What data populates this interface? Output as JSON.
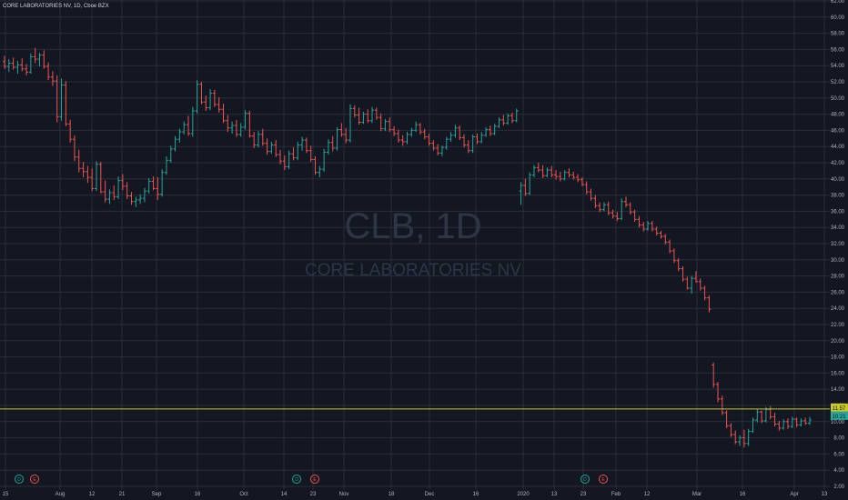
{
  "header": {
    "title": "CORE LABORATORIES NV, 1D, Cboe BZX"
  },
  "watermark": {
    "symbol": "CLB, 1D",
    "name": "CORE LABORATORIES NV"
  },
  "colors": {
    "background": "#131722",
    "grid": "#2a2e39",
    "up": "#26a69a",
    "down": "#ef5350",
    "hline": "#c9c92a",
    "axis_text": "#b2b5be",
    "price_label_bg": "#c9c92a",
    "dividend": "#26a69a",
    "earnings": "#ef5350"
  },
  "price_axis": {
    "ticks": [
      "62.00",
      "60.00",
      "58.00",
      "56.00",
      "54.00",
      "52.00",
      "50.00",
      "48.00",
      "46.00",
      "44.00",
      "42.00",
      "40.00",
      "38.00",
      "36.00",
      "34.00",
      "32.00",
      "30.00",
      "28.00",
      "26.00",
      "24.00",
      "22.00",
      "20.00",
      "18.00",
      "16.00",
      "14.00",
      "12.00",
      "10.00",
      "8.00",
      "6.00",
      "4.00",
      "2.00"
    ],
    "price_labels": [
      "11.57",
      "10.21"
    ]
  },
  "time_axis": {
    "labels": [
      "15",
      "Aug",
      "12",
      "21",
      "Sep",
      "16",
      "Oct",
      "14",
      "23",
      "Nov",
      "18",
      "Dec",
      "16",
      "2020",
      "13",
      "23",
      "Feb",
      "12",
      "Mar",
      "16",
      "Apr",
      "13"
    ]
  },
  "events": [
    {
      "type": "dividend",
      "label": "D"
    },
    {
      "type": "earnings",
      "label": "E"
    },
    {
      "type": "dividend",
      "label": "D"
    },
    {
      "type": "earnings",
      "label": "E"
    },
    {
      "type": "dividend",
      "label": "D"
    },
    {
      "type": "earnings",
      "label": "E"
    }
  ],
  "chart_data": {
    "type": "ohlc",
    "title": "CORE LABORATORIES NV, 1D, Cboe BZX",
    "symbol": "CLB",
    "interval": "1D",
    "ylim": [
      2,
      62
    ],
    "horizontal_line": 11.57,
    "last_price": 10.21,
    "dates": [
      "2019-07-15",
      "2019-07-16",
      "2019-07-17",
      "2019-07-18",
      "2019-07-19",
      "2019-07-22",
      "2019-07-23",
      "2019-07-24",
      "2019-07-25",
      "2019-07-26",
      "2019-07-29",
      "2019-07-30",
      "2019-07-31",
      "2019-08-01",
      "2019-08-02",
      "2019-08-05",
      "2019-08-06",
      "2019-08-07",
      "2019-08-08",
      "2019-08-09",
      "2019-08-12",
      "2019-08-13",
      "2019-08-14",
      "2019-08-15",
      "2019-08-16",
      "2019-08-19",
      "2019-08-20",
      "2019-08-21",
      "2019-08-22",
      "2019-08-23",
      "2019-08-26",
      "2019-08-27",
      "2019-08-28",
      "2019-08-29",
      "2019-08-30",
      "2019-09-03",
      "2019-09-04",
      "2019-09-05",
      "2019-09-06",
      "2019-09-09",
      "2019-09-10",
      "2019-09-11",
      "2019-09-12",
      "2019-09-13",
      "2019-09-16",
      "2019-09-17",
      "2019-09-18",
      "2019-09-19",
      "2019-09-20",
      "2019-09-23",
      "2019-09-24",
      "2019-09-25",
      "2019-09-26",
      "2019-09-27",
      "2019-09-30",
      "2019-10-01",
      "2019-10-02",
      "2019-10-03",
      "2019-10-04",
      "2019-10-07",
      "2019-10-08",
      "2019-10-09",
      "2019-10-10",
      "2019-10-11",
      "2019-10-14",
      "2019-10-15",
      "2019-10-16",
      "2019-10-17",
      "2019-10-18",
      "2019-10-21",
      "2019-10-22",
      "2019-10-23",
      "2019-10-24",
      "2019-10-25",
      "2019-10-28",
      "2019-10-29",
      "2019-10-30",
      "2019-10-31",
      "2019-11-01",
      "2019-11-04",
      "2019-11-05",
      "2019-11-06",
      "2019-11-07",
      "2019-11-08",
      "2019-11-11",
      "2019-11-12",
      "2019-11-13",
      "2019-11-14",
      "2019-11-15",
      "2019-11-18",
      "2019-11-19",
      "2019-11-20",
      "2019-11-21",
      "2019-11-22",
      "2019-11-25",
      "2019-11-26",
      "2019-11-27",
      "2019-11-29",
      "2019-12-02",
      "2019-12-03",
      "2019-12-04",
      "2019-12-05",
      "2019-12-06",
      "2019-12-09",
      "2019-12-10",
      "2019-12-11",
      "2019-12-12",
      "2019-12-13",
      "2019-12-16",
      "2019-12-17",
      "2019-12-18",
      "2019-12-19",
      "2019-12-20",
      "2019-12-23",
      "2019-12-24",
      "2019-12-26",
      "2019-12-27",
      "2019-12-30",
      "2019-12-31",
      "2020-01-02",
      "2020-01-03",
      "2020-01-06",
      "2020-01-07",
      "2020-01-08",
      "2020-01-09",
      "2020-01-10",
      "2020-01-13",
      "2020-01-14",
      "2020-01-15",
      "2020-01-16",
      "2020-01-17",
      "2020-01-21",
      "2020-01-22",
      "2020-01-23",
      "2020-01-24",
      "2020-01-27",
      "2020-01-28",
      "2020-01-29",
      "2020-01-30",
      "2020-01-31",
      "2020-02-03",
      "2020-02-04",
      "2020-02-05",
      "2020-02-06",
      "2020-02-07",
      "2020-02-10",
      "2020-02-11",
      "2020-02-12",
      "2020-02-13",
      "2020-02-14",
      "2020-02-18",
      "2020-02-19",
      "2020-02-20",
      "2020-02-21",
      "2020-02-24",
      "2020-02-25",
      "2020-02-26",
      "2020-02-27",
      "2020-02-28",
      "2020-03-02",
      "2020-03-03",
      "2020-03-04",
      "2020-03-05",
      "2020-03-06",
      "2020-03-09",
      "2020-03-10",
      "2020-03-11",
      "2020-03-12",
      "2020-03-13",
      "2020-03-16",
      "2020-03-17",
      "2020-03-18",
      "2020-03-19",
      "2020-03-20",
      "2020-03-23",
      "2020-03-24",
      "2020-03-25",
      "2020-03-26",
      "2020-03-27",
      "2020-03-30",
      "2020-03-31",
      "2020-04-01",
      "2020-04-02",
      "2020-04-03",
      "2020-04-06",
      "2020-04-07",
      "2020-04-08",
      "2020-04-09"
    ],
    "ohlc": [
      [
        54.5,
        55.2,
        53.6,
        53.9
      ],
      [
        53.9,
        54.8,
        53.2,
        54.3
      ],
      [
        54.3,
        55,
        53.5,
        53.8
      ],
      [
        53.8,
        54.6,
        53,
        54.1
      ],
      [
        54.1,
        54.9,
        53.3,
        53.6
      ],
      [
        53.6,
        54.2,
        52.8,
        53.2
      ],
      [
        53.2,
        55.5,
        53,
        55.1
      ],
      [
        55.1,
        56.2,
        54.3,
        54.8
      ],
      [
        54.8,
        55.6,
        53.9,
        55.3
      ],
      [
        55.3,
        55.9,
        53.6,
        53.9
      ],
      [
        53.9,
        54.4,
        52.2,
        52.6
      ],
      [
        52.6,
        53.3,
        51.5,
        52.1
      ],
      [
        52.1,
        52.8,
        47,
        47.7
      ],
      [
        47.7,
        52.4,
        47.2,
        51.6
      ],
      [
        51.6,
        52.1,
        46.5,
        46.8
      ],
      [
        46.8,
        47.3,
        44.5,
        44.9
      ],
      [
        44.9,
        45.4,
        42.2,
        42.7
      ],
      [
        42.7,
        43.6,
        40.8,
        41.3
      ],
      [
        41.3,
        42.1,
        40.2,
        40.9
      ],
      [
        40.9,
        41.6,
        39.5,
        40.2
      ],
      [
        40.2,
        41.3,
        38.5,
        38.8
      ],
      [
        38.8,
        42.2,
        38.5,
        41.8
      ],
      [
        41.8,
        42.1,
        38.2,
        38.4
      ],
      [
        38.4,
        39.8,
        37.1,
        37.5
      ],
      [
        37.5,
        38.7,
        36.9,
        38.3
      ],
      [
        38.3,
        39.2,
        37.4,
        37.8
      ],
      [
        37.8,
        40.3,
        37.5,
        39.8
      ],
      [
        39.8,
        40.6,
        38.6,
        39.1
      ],
      [
        39.1,
        39.6,
        37.5,
        37.9
      ],
      [
        37.9,
        38.4,
        36.8,
        37.2
      ],
      [
        37.2,
        37.8,
        36.5,
        37.4
      ],
      [
        37.4,
        38.1,
        36.9,
        37.6
      ],
      [
        37.6,
        38.9,
        37.1,
        38.5
      ],
      [
        38.5,
        40.1,
        38.2,
        39.7
      ],
      [
        39.7,
        40.3,
        38.6,
        38.8
      ],
      [
        38.8,
        40.2,
        37.4,
        38.1
      ],
      [
        38.1,
        41.2,
        37.8,
        40.8
      ],
      [
        40.8,
        42.8,
        40.5,
        42.3
      ],
      [
        42.3,
        44.1,
        42,
        43.7
      ],
      [
        43.7,
        45.3,
        43.4,
        44.9
      ],
      [
        44.9,
        46.2,
        44.5,
        45.8
      ],
      [
        45.8,
        47.1,
        45.5,
        46.7
      ],
      [
        46.7,
        47.8,
        45.3,
        45.6
      ],
      [
        45.6,
        48.9,
        45.2,
        48.4
      ],
      [
        48.4,
        52.2,
        48.1,
        51.7
      ],
      [
        51.7,
        52,
        49.2,
        49.5
      ],
      [
        49.5,
        50.3,
        48.4,
        48.8
      ],
      [
        48.8,
        51.1,
        48.5,
        50.6
      ],
      [
        50.6,
        51,
        48.9,
        49.2
      ],
      [
        49.2,
        50.1,
        48.2,
        48.6
      ],
      [
        48.6,
        49.3,
        46.9,
        47.2
      ],
      [
        47.2,
        47.9,
        45.8,
        46.3
      ],
      [
        46.3,
        47.1,
        45.6,
        46.6
      ],
      [
        46.6,
        47.3,
        45.2,
        45.5
      ],
      [
        45.5,
        46.9,
        45.2,
        46.4
      ],
      [
        46.4,
        48.5,
        46.1,
        48.1
      ],
      [
        48.1,
        48.4,
        45.1,
        45.3
      ],
      [
        45.3,
        45.8,
        43.8,
        44.2
      ],
      [
        44.2,
        45.9,
        43.9,
        45.5
      ],
      [
        45.5,
        46.2,
        44.1,
        44.4
      ],
      [
        44.4,
        45,
        43,
        43.4
      ],
      [
        43.4,
        44.6,
        43.1,
        44.2
      ],
      [
        44.2,
        44.8,
        42.7,
        43
      ],
      [
        43,
        43.6,
        41.8,
        42.2
      ],
      [
        42.2,
        42.9,
        41.1,
        41.5
      ],
      [
        41.5,
        43.5,
        41.2,
        43.1
      ],
      [
        43.1,
        43.9,
        42.3,
        42.6
      ],
      [
        42.6,
        44.6,
        42.3,
        44.2
      ],
      [
        44.2,
        45.2,
        43.5,
        44.8
      ],
      [
        44.8,
        45.1,
        43.2,
        43.5
      ],
      [
        43.5,
        44.1,
        42.1,
        42.4
      ],
      [
        42.4,
        42.8,
        40.5,
        40.8
      ],
      [
        40.8,
        41.6,
        40.2,
        41.2
      ],
      [
        41.2,
        43.7,
        40.9,
        43.3
      ],
      [
        43.3,
        44.9,
        43,
        44.5
      ],
      [
        44.5,
        45.3,
        43.4,
        43.8
      ],
      [
        43.8,
        46.4,
        43.5,
        46.1
      ],
      [
        46.1,
        46.9,
        45.2,
        45.5
      ],
      [
        45.5,
        46.3,
        44.4,
        44.8
      ],
      [
        44.8,
        49.2,
        44.5,
        48.7
      ],
      [
        48.7,
        49.1,
        47.6,
        47.9
      ],
      [
        47.9,
        48.8,
        46.7,
        47
      ],
      [
        47,
        48.3,
        46.8,
        48
      ],
      [
        48,
        48.6,
        46.9,
        47.2
      ],
      [
        47.2,
        48.9,
        46.9,
        48.5
      ],
      [
        48.5,
        48.8,
        47.3,
        47.6
      ],
      [
        47.6,
        48.1,
        45.9,
        46.2
      ],
      [
        46.2,
        47.4,
        45.9,
        47.1
      ],
      [
        47.1,
        47.6,
        45.8,
        46.1
      ],
      [
        46.1,
        46.5,
        45.3,
        45.6
      ],
      [
        45.6,
        46.1,
        44.5,
        44.8
      ],
      [
        44.8,
        45.4,
        44.1,
        44.6
      ],
      [
        44.6,
        45.8,
        44.3,
        45.5
      ],
      [
        45.5,
        46.3,
        45.2,
        46
      ],
      [
        46,
        47.1,
        45.8,
        46.7
      ],
      [
        46.7,
        46.9,
        45.5,
        45.8
      ],
      [
        45.8,
        46.2,
        44.9,
        45.2
      ],
      [
        45.2,
        45.6,
        44.1,
        44.4
      ],
      [
        44.4,
        44.8,
        43.5,
        43.8
      ],
      [
        43.8,
        44.3,
        42.9,
        43.2
      ],
      [
        43.2,
        44.1,
        42.8,
        43.9
      ],
      [
        43.9,
        45.2,
        43.6,
        44.9
      ],
      [
        44.9,
        45.8,
        44.6,
        45.4
      ],
      [
        45.4,
        46.7,
        45.1,
        46.3
      ],
      [
        46.3,
        46.6,
        44.8,
        45.1
      ],
      [
        45.1,
        45.5,
        43.9,
        44.2
      ],
      [
        44.2,
        44.8,
        43.2,
        43.5
      ],
      [
        43.5,
        45.5,
        43.2,
        45.2
      ],
      [
        45.2,
        45.6,
        44.3,
        44.6
      ],
      [
        44.6,
        45.8,
        44.4,
        45.4
      ],
      [
        45.4,
        46.4,
        45.2,
        46.1
      ],
      [
        46.1,
        46.6,
        45.3,
        45.6
      ],
      [
        45.6,
        46.8,
        45.4,
        46.5
      ],
      [
        46.5,
        47.6,
        46.3,
        47.3
      ],
      [
        47.3,
        47.9,
        46.6,
        46.9
      ],
      [
        46.9,
        48.1,
        46.7,
        47.8
      ],
      [
        47.8,
        48.2,
        46.9,
        47.2
      ],
      [
        47.2,
        48.7,
        47,
        48.4
      ],
      [
        38.5,
        39.6,
        36.8,
        39.2
      ],
      [
        39.2,
        40,
        37.9,
        38.2
      ],
      [
        38.2,
        40.8,
        38,
        40.5
      ],
      [
        40.5,
        41.7,
        40.2,
        41.4
      ],
      [
        41.4,
        42,
        40.8,
        41.1
      ],
      [
        41.1,
        41.7,
        40.1,
        40.4
      ],
      [
        40.4,
        41.4,
        40.2,
        41.1
      ],
      [
        41.1,
        41.6,
        40.2,
        40.5
      ],
      [
        40.5,
        41.1,
        39.9,
        40.3
      ],
      [
        40.3,
        40.9,
        39.7,
        40
      ],
      [
        40,
        41.1,
        39.8,
        40.8
      ],
      [
        40.8,
        41.3,
        40.2,
        40.5
      ],
      [
        40.5,
        40.9,
        39.9,
        40.2
      ],
      [
        40.2,
        40.6,
        39.6,
        39.9
      ],
      [
        39.9,
        40.2,
        39.1,
        39.3
      ],
      [
        39.3,
        39.7,
        38.1,
        38.4
      ],
      [
        38.4,
        38.8,
        37.3,
        37.6
      ],
      [
        37.6,
        38,
        36.4,
        36.7
      ],
      [
        36.7,
        37.1,
        35.9,
        36.2
      ],
      [
        36.2,
        37.1,
        36,
        36.8
      ],
      [
        36.8,
        37.2,
        35.5,
        35.8
      ],
      [
        35.8,
        36.2,
        35.1,
        35.4
      ],
      [
        35.4,
        35.9,
        34.8,
        35.1
      ],
      [
        35.1,
        37.6,
        34.9,
        37.2
      ],
      [
        37.2,
        37.8,
        36.5,
        36.8
      ],
      [
        36.8,
        37.1,
        35.6,
        35.9
      ],
      [
        35.9,
        36.2,
        34.7,
        35
      ],
      [
        35,
        35.4,
        34,
        34.3
      ],
      [
        34.3,
        34.7,
        33.5,
        33.8
      ],
      [
        33.8,
        34.8,
        33.6,
        34.5
      ],
      [
        34.5,
        34.8,
        33.5,
        33.8
      ],
      [
        33.8,
        34.1,
        33,
        33.3
      ],
      [
        33.3,
        33.6,
        32.6,
        32.9
      ],
      [
        32.9,
        33.2,
        31.9,
        32.2
      ],
      [
        32.2,
        32.5,
        30.8,
        31.1
      ],
      [
        31.1,
        31.4,
        29.6,
        29.9
      ],
      [
        29.9,
        30.2,
        28.6,
        28.9
      ],
      [
        28.9,
        29.2,
        27.3,
        27.6
      ],
      [
        27.6,
        27.9,
        26.3,
        26.5
      ],
      [
        26.5,
        28,
        25.8,
        27.7
      ],
      [
        27.7,
        28.6,
        27.2,
        27.3
      ],
      [
        27.3,
        27.7,
        26.2,
        26.5
      ],
      [
        26.5,
        26.8,
        25,
        25.3
      ],
      [
        25.3,
        25.6,
        23.5,
        23.9
      ],
      [
        17,
        17.3,
        14.2,
        14.6
      ],
      [
        14.6,
        14.9,
        12.4,
        12.8
      ],
      [
        12.8,
        13.2,
        10.8,
        11.1
      ],
      [
        11.1,
        11.4,
        9.2,
        9.5
      ],
      [
        9.5,
        9.8,
        8.1,
        8.4
      ],
      [
        8.4,
        8.9,
        7.2,
        7.5
      ],
      [
        7.5,
        8.3,
        7,
        8
      ],
      [
        8,
        9,
        6.8,
        7.3
      ],
      [
        7.3,
        9.1,
        7,
        8.8
      ],
      [
        8.8,
        10.5,
        8.6,
        10.2
      ],
      [
        10.2,
        11.6,
        9.9,
        11.2
      ],
      [
        11.2,
        11.4,
        9.8,
        10.1
      ],
      [
        10.1,
        11.8,
        9.9,
        11.5
      ],
      [
        11.5,
        11.9,
        10.3,
        10.6
      ],
      [
        10.6,
        11.1,
        9.4,
        9.7
      ],
      [
        9.7,
        10.1,
        8.9,
        9.2
      ],
      [
        9.2,
        10.3,
        9,
        10
      ],
      [
        10,
        10.4,
        9.1,
        9.4
      ],
      [
        9.4,
        10.6,
        9.2,
        10.3
      ],
      [
        10.3,
        10.5,
        9.3,
        9.6
      ],
      [
        9.6,
        10.4,
        9.4,
        10.1
      ],
      [
        10.1,
        10.5,
        9.6,
        9.8
      ],
      [
        9.8,
        10.6,
        9.6,
        10.21
      ]
    ]
  }
}
